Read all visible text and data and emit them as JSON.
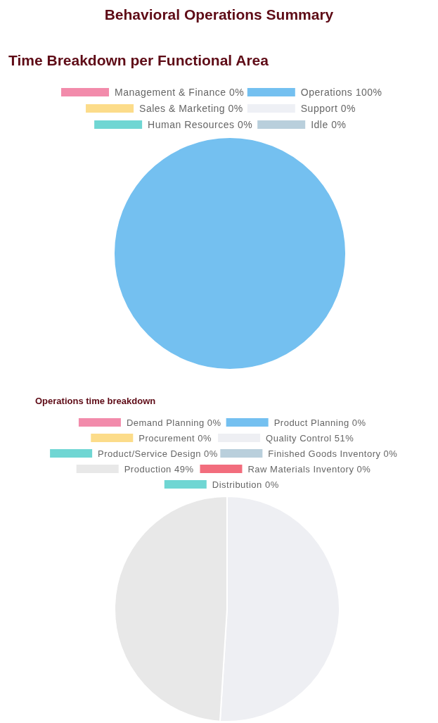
{
  "chart_data": [
    {
      "type": "pie",
      "title": "Behavioral Operations Summary",
      "subtitle": "Time Breakdown per Functional Area",
      "categories": [
        "Management & Finance",
        "Operations",
        "Sales & Marketing",
        "Support",
        "Human Resources",
        "Idle"
      ],
      "values": [
        0,
        100,
        0,
        0,
        0,
        0
      ],
      "value_labels": [
        "0%",
        "100%",
        "0%",
        "0%",
        "0%",
        "0%"
      ],
      "colors": [
        "#f28bab",
        "#74c0f0",
        "#fcdc8a",
        "#eef0f5",
        "#6fd6d3",
        "#b9cfdc"
      ],
      "legend": "top"
    },
    {
      "type": "pie",
      "title": "Operations time breakdown",
      "categories": [
        "Demand Planning",
        "Product Planning",
        "Procurement",
        "Quality Control",
        "Product/Service Design",
        "Finished Goods Inventory",
        "Production",
        "Raw Materials Inventory",
        "Distribution"
      ],
      "values": [
        0,
        0,
        0,
        51,
        0,
        0,
        49,
        0,
        0
      ],
      "value_labels": [
        "0%",
        "0%",
        "0%",
        "51%",
        "0%",
        "0%",
        "49%",
        "0%",
        "0%"
      ],
      "colors": [
        "#f28bab",
        "#74c0f0",
        "#fcdc8a",
        "#eeeff3",
        "#6fd6d3",
        "#b9cfdc",
        "#e8e8e8",
        "#f26d7d",
        "#6fd6d3"
      ],
      "legend": "top"
    }
  ]
}
